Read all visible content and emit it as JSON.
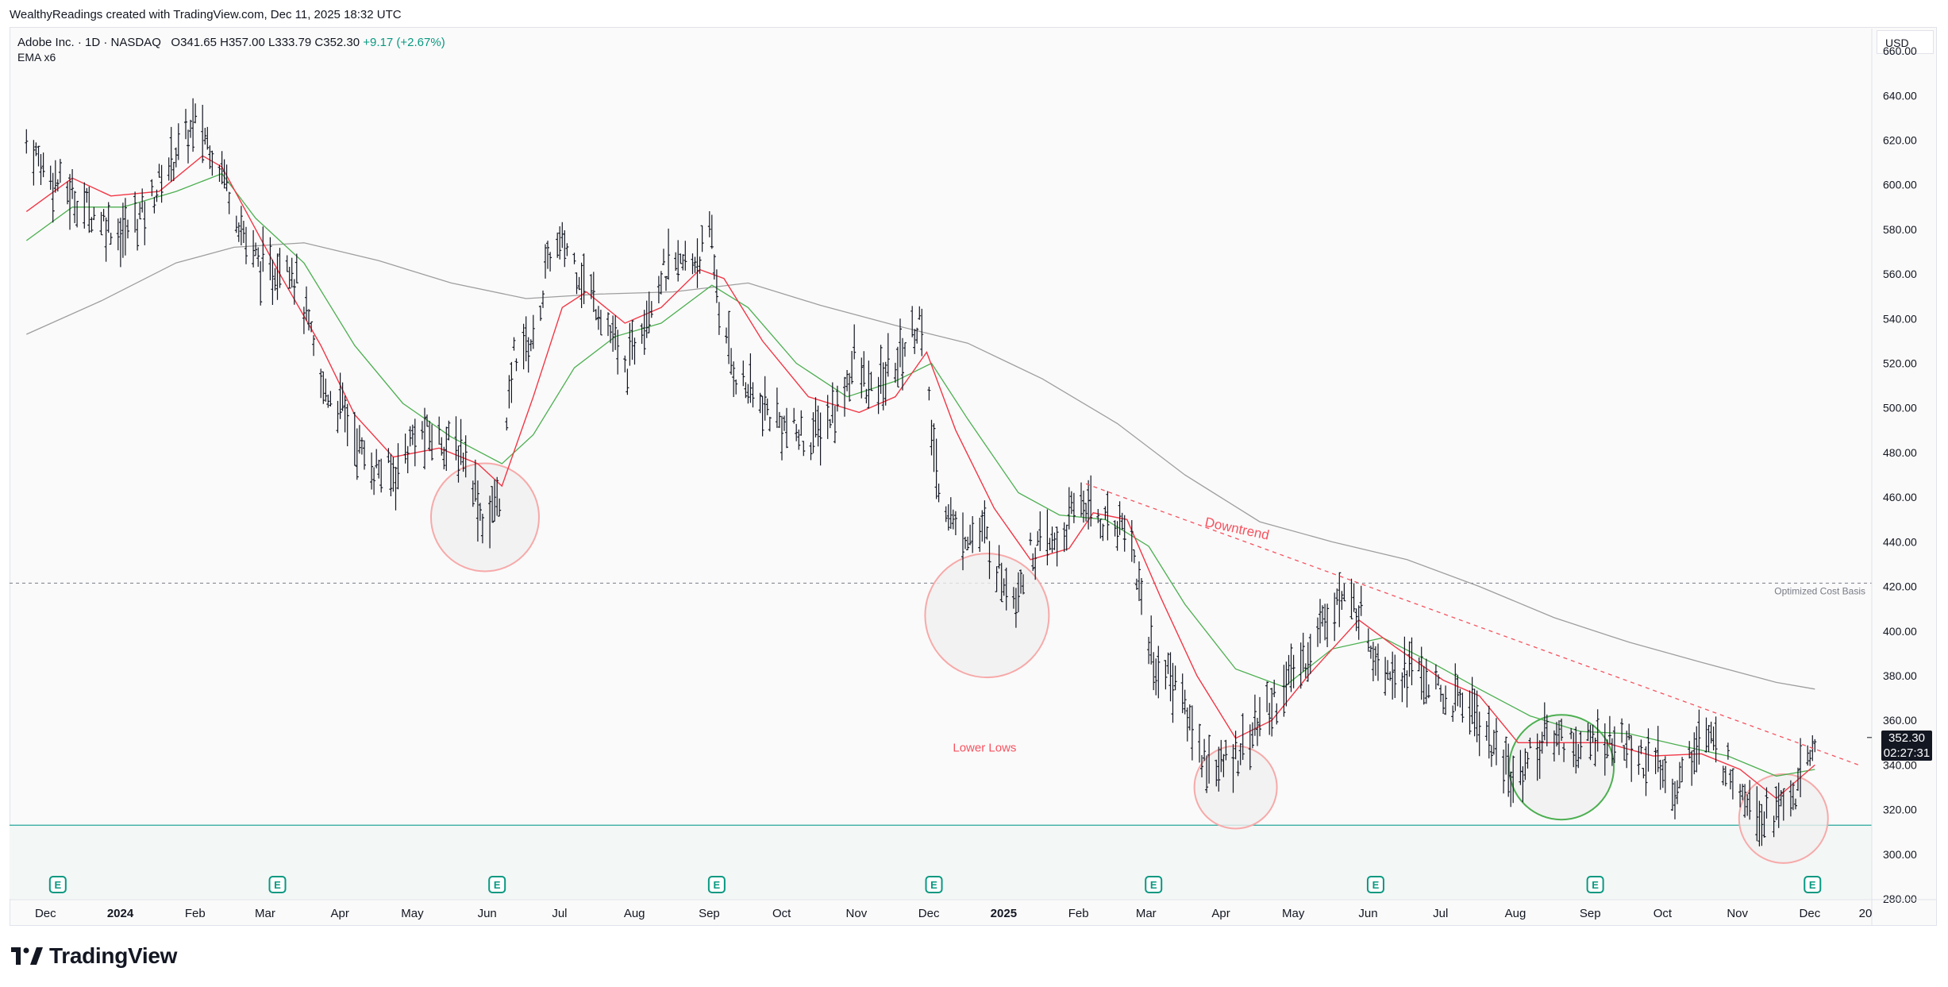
{
  "header": {
    "attribution": "WealthyReadings created with TradingView.com, Dec 11, 2025 18:32 UTC"
  },
  "legend": {
    "symbol": "Adobe Inc. · 1D · NASDAQ",
    "ohlc": "O341.65 H357.00 L333.79 C352.30",
    "change": "+9.17 (+2.67%)",
    "indicator": "EMA x6"
  },
  "currency_label": "USD",
  "last_price": {
    "value": "352.30",
    "countdown": "02:27:31"
  },
  "brand": {
    "name": "TradingView"
  },
  "colors": {
    "ema_fast": "#f23645",
    "ema_mid": "#4caf50",
    "ema_slow": "#9e9e9e",
    "bars": "#131722",
    "downtrend": "#f7525f",
    "cost_basis_line": "#787b86",
    "support_line": "#26a69a",
    "circle_red_fill": "rgba(240,240,240,0.8)",
    "circle_red_stroke": "#f7a9a9",
    "circle_green_stroke": "#4caf50",
    "earnings_marker": "#089981"
  },
  "chart_data": {
    "type": "line",
    "title": "",
    "ylim": [
      280,
      670
    ],
    "y_ticks": [
      "660.00",
      "640.00",
      "620.00",
      "600.00",
      "580.00",
      "560.00",
      "540.00",
      "520.00",
      "500.00",
      "480.00",
      "460.00",
      "440.00",
      "420.00",
      "400.00",
      "380.00",
      "360.00",
      "340.00",
      "320.00",
      "300.00",
      "280.00"
    ],
    "x_ticks": [
      {
        "label": "Dec",
        "bold": false
      },
      {
        "label": "2024",
        "bold": true
      },
      {
        "label": "Feb",
        "bold": false
      },
      {
        "label": "Mar",
        "bold": false
      },
      {
        "label": "Apr",
        "bold": false
      },
      {
        "label": "May",
        "bold": false
      },
      {
        "label": "Jun",
        "bold": false
      },
      {
        "label": "Jul",
        "bold": false
      },
      {
        "label": "Aug",
        "bold": false
      },
      {
        "label": "Sep",
        "bold": false
      },
      {
        "label": "Oct",
        "bold": false
      },
      {
        "label": "Nov",
        "bold": false
      },
      {
        "label": "Dec",
        "bold": false
      },
      {
        "label": "2025",
        "bold": true
      },
      {
        "label": "Feb",
        "bold": false
      },
      {
        "label": "Mar",
        "bold": false
      },
      {
        "label": "Apr",
        "bold": false
      },
      {
        "label": "May",
        "bold": false
      },
      {
        "label": "Jun",
        "bold": false
      },
      {
        "label": "Jul",
        "bold": false
      },
      {
        "label": "Aug",
        "bold": false
      },
      {
        "label": "Sep",
        "bold": false
      },
      {
        "label": "Oct",
        "bold": false
      },
      {
        "label": "Nov",
        "bold": false
      },
      {
        "label": "Dec",
        "bold": false
      },
      {
        "label": "20",
        "bold": false
      }
    ],
    "price_path": [
      [
        "2023-12-01",
        620
      ],
      [
        "2023-12-10",
        605
      ],
      [
        "2023-12-20",
        595
      ],
      [
        "2024-01-01",
        585
      ],
      [
        "2024-01-10",
        578
      ],
      [
        "2024-01-20",
        590
      ],
      [
        "2024-02-01",
        615
      ],
      [
        "2024-02-10",
        628
      ],
      [
        "2024-02-20",
        608
      ],
      [
        "2024-03-01",
        575
      ],
      [
        "2024-03-10",
        558
      ],
      [
        "2024-03-18",
        570
      ],
      [
        "2024-03-25",
        545
      ],
      [
        "2024-04-01",
        510
      ],
      [
        "2024-04-10",
        500
      ],
      [
        "2024-04-20",
        475
      ],
      [
        "2024-05-01",
        470
      ],
      [
        "2024-05-10",
        488
      ],
      [
        "2024-05-20",
        487
      ],
      [
        "2024-06-01",
        478
      ],
      [
        "2024-06-08",
        445
      ],
      [
        "2024-06-15",
        465
      ],
      [
        "2024-06-20",
        525
      ],
      [
        "2024-06-28",
        530
      ],
      [
        "2024-07-05",
        570
      ],
      [
        "2024-07-12",
        572
      ],
      [
        "2024-07-20",
        555
      ],
      [
        "2024-07-28",
        540
      ],
      [
        "2024-08-05",
        515
      ],
      [
        "2024-08-12",
        540
      ],
      [
        "2024-08-20",
        560
      ],
      [
        "2024-09-01",
        565
      ],
      [
        "2024-09-10",
        575
      ],
      [
        "2024-09-14",
        535
      ],
      [
        "2024-09-20",
        515
      ],
      [
        "2024-10-01",
        500
      ],
      [
        "2024-10-10",
        492
      ],
      [
        "2024-10-20",
        485
      ],
      [
        "2024-11-01",
        500
      ],
      [
        "2024-11-08",
        522
      ],
      [
        "2024-11-15",
        505
      ],
      [
        "2024-11-25",
        520
      ],
      [
        "2024-12-05",
        540
      ],
      [
        "2024-12-12",
        470
      ],
      [
        "2024-12-20",
        445
      ],
      [
        "2025-01-01",
        443
      ],
      [
        "2025-01-08",
        425
      ],
      [
        "2025-01-14",
        418
      ],
      [
        "2025-01-20",
        435
      ],
      [
        "2025-02-01",
        440
      ],
      [
        "2025-02-10",
        460
      ],
      [
        "2025-02-20",
        448
      ],
      [
        "2025-03-01",
        450
      ],
      [
        "2025-03-12",
        385
      ],
      [
        "2025-03-20",
        380
      ],
      [
        "2025-04-01",
        345
      ],
      [
        "2025-04-08",
        338
      ],
      [
        "2025-04-15",
        345
      ],
      [
        "2025-04-25",
        360
      ],
      [
        "2025-05-05",
        375
      ],
      [
        "2025-05-15",
        390
      ],
      [
        "2025-05-25",
        415
      ],
      [
        "2025-06-05",
        410
      ],
      [
        "2025-06-12",
        390
      ],
      [
        "2025-06-20",
        383
      ],
      [
        "2025-07-01",
        382
      ],
      [
        "2025-07-10",
        368
      ],
      [
        "2025-07-20",
        370
      ],
      [
        "2025-08-01",
        345
      ],
      [
        "2025-08-08",
        332
      ],
      [
        "2025-08-15",
        345
      ],
      [
        "2025-08-25",
        355
      ],
      [
        "2025-09-05",
        348
      ],
      [
        "2025-09-15",
        352
      ],
      [
        "2025-09-25",
        348
      ],
      [
        "2025-10-05",
        340
      ],
      [
        "2025-10-15",
        330
      ],
      [
        "2025-10-25",
        355
      ],
      [
        "2025-11-01",
        345
      ],
      [
        "2025-11-10",
        332
      ],
      [
        "2025-11-20",
        318
      ],
      [
        "2025-11-28",
        322
      ],
      [
        "2025-12-05",
        330
      ],
      [
        "2025-12-11",
        352.3
      ]
    ],
    "series": [
      {
        "values_key": "ema_fast"
      },
      {
        "values_key": "ema_mid"
      },
      {
        "values_key": "ema_slow"
      }
    ],
    "ema_fast": [
      [
        "2023-12-01",
        588
      ],
      [
        "2023-12-20",
        603
      ],
      [
        "2024-01-05",
        595
      ],
      [
        "2024-01-25",
        597
      ],
      [
        "2024-02-12",
        613
      ],
      [
        "2024-02-20",
        608
      ],
      [
        "2024-03-01",
        588
      ],
      [
        "2024-03-15",
        560
      ],
      [
        "2024-04-01",
        528
      ],
      [
        "2024-04-15",
        497
      ],
      [
        "2024-05-01",
        478
      ],
      [
        "2024-05-20",
        482
      ],
      [
        "2024-06-05",
        475
      ],
      [
        "2024-06-15",
        465
      ],
      [
        "2024-06-28",
        505
      ],
      [
        "2024-07-10",
        545
      ],
      [
        "2024-07-20",
        552
      ],
      [
        "2024-08-05",
        538
      ],
      [
        "2024-08-20",
        545
      ],
      [
        "2024-09-05",
        562
      ],
      [
        "2024-09-15",
        558
      ],
      [
        "2024-10-01",
        530
      ],
      [
        "2024-10-20",
        505
      ],
      [
        "2024-11-10",
        498
      ],
      [
        "2024-11-25",
        505
      ],
      [
        "2024-12-08",
        525
      ],
      [
        "2024-12-20",
        490
      ],
      [
        "2025-01-05",
        455
      ],
      [
        "2025-01-20",
        432
      ],
      [
        "2025-02-05",
        437
      ],
      [
        "2025-02-15",
        453
      ],
      [
        "2025-03-01",
        450
      ],
      [
        "2025-03-15",
        415
      ],
      [
        "2025-03-30",
        380
      ],
      [
        "2025-04-15",
        352
      ],
      [
        "2025-04-30",
        360
      ],
      [
        "2025-05-15",
        380
      ],
      [
        "2025-06-05",
        405
      ],
      [
        "2025-06-20",
        393
      ],
      [
        "2025-07-10",
        378
      ],
      [
        "2025-07-25",
        371
      ],
      [
        "2025-08-10",
        350
      ],
      [
        "2025-08-25",
        350
      ],
      [
        "2025-09-15",
        350
      ],
      [
        "2025-10-05",
        344
      ],
      [
        "2025-10-25",
        345
      ],
      [
        "2025-11-10",
        338
      ],
      [
        "2025-11-25",
        325
      ],
      [
        "2025-12-11",
        340
      ]
    ],
    "ema_mid": [
      [
        "2023-12-01",
        575
      ],
      [
        "2023-12-20",
        590
      ],
      [
        "2024-01-10",
        590
      ],
      [
        "2024-02-01",
        597
      ],
      [
        "2024-02-20",
        605
      ],
      [
        "2024-03-05",
        585
      ],
      [
        "2024-03-25",
        565
      ],
      [
        "2024-04-15",
        528
      ],
      [
        "2024-05-05",
        502
      ],
      [
        "2024-05-25",
        487
      ],
      [
        "2024-06-15",
        475
      ],
      [
        "2024-06-28",
        488
      ],
      [
        "2024-07-15",
        518
      ],
      [
        "2024-08-01",
        532
      ],
      [
        "2024-08-20",
        538
      ],
      [
        "2024-09-10",
        555
      ],
      [
        "2024-09-25",
        545
      ],
      [
        "2024-10-15",
        520
      ],
      [
        "2024-11-05",
        505
      ],
      [
        "2024-11-25",
        512
      ],
      [
        "2024-12-10",
        520
      ],
      [
        "2024-12-25",
        495
      ],
      [
        "2025-01-15",
        462
      ],
      [
        "2025-02-01",
        452
      ],
      [
        "2025-02-20",
        450
      ],
      [
        "2025-03-10",
        438
      ],
      [
        "2025-03-25",
        412
      ],
      [
        "2025-04-15",
        383
      ],
      [
        "2025-05-05",
        375
      ],
      [
        "2025-05-25",
        392
      ],
      [
        "2025-06-15",
        397
      ],
      [
        "2025-07-05",
        386
      ],
      [
        "2025-07-25",
        374
      ],
      [
        "2025-08-15",
        362
      ],
      [
        "2025-09-05",
        355
      ],
      [
        "2025-09-25",
        354
      ],
      [
        "2025-10-15",
        349
      ],
      [
        "2025-11-05",
        344
      ],
      [
        "2025-11-25",
        335
      ],
      [
        "2025-12-11",
        338
      ]
    ],
    "ema_slow": [
      [
        "2023-12-01",
        533
      ],
      [
        "2024-01-01",
        548
      ],
      [
        "2024-02-01",
        565
      ],
      [
        "2024-02-25",
        572
      ],
      [
        "2024-03-25",
        574
      ],
      [
        "2024-04-25",
        566
      ],
      [
        "2024-05-25",
        556
      ],
      [
        "2024-06-25",
        549
      ],
      [
        "2024-07-25",
        551
      ],
      [
        "2024-08-25",
        552
      ],
      [
        "2024-09-25",
        556
      ],
      [
        "2024-10-25",
        546
      ],
      [
        "2024-11-25",
        537
      ],
      [
        "2024-12-25",
        529
      ],
      [
        "2025-01-25",
        513
      ],
      [
        "2025-02-25",
        493
      ],
      [
        "2025-03-25",
        470
      ],
      [
        "2025-04-25",
        449
      ],
      [
        "2025-05-25",
        440
      ],
      [
        "2025-06-25",
        432
      ],
      [
        "2025-07-25",
        420
      ],
      [
        "2025-08-25",
        406
      ],
      [
        "2025-09-25",
        395
      ],
      [
        "2025-10-25",
        386
      ],
      [
        "2025-11-25",
        377
      ],
      [
        "2025-12-11",
        374
      ]
    ],
    "horizontal_lines": [
      {
        "name": "Optimized Cost Basis",
        "y": 421.5,
        "style": "dashed"
      },
      {
        "name": "",
        "y": 313,
        "style": "solid"
      }
    ],
    "trendline": {
      "label": "Downtrend",
      "from": [
        "2025-02-12",
        466
      ],
      "to": [
        "2025-12-20",
        339
      ]
    },
    "annotations": [
      {
        "text": "Lower Lows",
        "x": "2025-01-01",
        "y": 346
      }
    ],
    "circles": [
      {
        "x": "2024-06-08",
        "y": 451,
        "kind": "red"
      },
      {
        "x": "2025-01-02",
        "y": 407,
        "kind": "red"
      },
      {
        "x": "2025-04-15",
        "y": 330,
        "kind": "red"
      },
      {
        "x": "2025-08-28",
        "y": 339,
        "kind": "green"
      },
      {
        "x": "2025-11-28",
        "y": 316,
        "kind": "red"
      }
    ],
    "earnings": [
      "2023-12-14",
      "2024-03-14",
      "2024-06-13",
      "2024-09-12",
      "2024-12-11",
      "2025-03-12",
      "2025-06-12",
      "2025-09-11",
      "2025-12-10"
    ],
    "grid": false
  }
}
